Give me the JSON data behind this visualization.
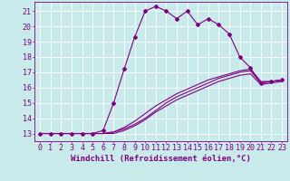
{
  "background_color": "#c8eaea",
  "grid_color": "#ffffff",
  "line_color": "#800080",
  "marker": "D",
  "markersize": 2.0,
  "linewidth": 0.8,
  "xlabel": "Windchill (Refroidissement éolien,°C)",
  "xlabel_fontsize": 6.5,
  "tick_fontsize": 6.0,
  "xlim": [
    -0.5,
    23.5
  ],
  "ylim": [
    12.5,
    21.6
  ],
  "yticks": [
    13,
    14,
    15,
    16,
    17,
    18,
    19,
    20,
    21
  ],
  "xticks": [
    0,
    1,
    2,
    3,
    4,
    5,
    6,
    7,
    8,
    9,
    10,
    11,
    12,
    13,
    14,
    15,
    16,
    17,
    18,
    19,
    20,
    21,
    22,
    23
  ],
  "series": [
    [
      13.0,
      13.0,
      13.0,
      13.0,
      13.0,
      13.0,
      13.2,
      15.0,
      17.2,
      19.3,
      21.0,
      21.3,
      21.0,
      20.5,
      21.0,
      20.1,
      20.5,
      20.1,
      19.5,
      18.0,
      17.3,
      16.3,
      16.4,
      16.5
    ],
    [
      13.0,
      13.0,
      13.0,
      13.0,
      13.0,
      13.0,
      13.0,
      13.1,
      13.3,
      13.6,
      14.0,
      14.5,
      15.0,
      15.4,
      15.7,
      16.0,
      16.3,
      16.6,
      16.8,
      17.0,
      17.1,
      16.3,
      16.4,
      16.5
    ],
    [
      13.0,
      13.0,
      13.0,
      13.0,
      13.0,
      13.0,
      13.0,
      13.1,
      13.4,
      13.8,
      14.3,
      14.8,
      15.2,
      15.6,
      15.9,
      16.2,
      16.5,
      16.7,
      16.9,
      17.1,
      17.2,
      16.4,
      16.4,
      16.5
    ],
    [
      13.0,
      13.0,
      13.0,
      13.0,
      13.0,
      13.0,
      13.0,
      13.0,
      13.2,
      13.5,
      13.9,
      14.4,
      14.8,
      15.2,
      15.5,
      15.8,
      16.1,
      16.4,
      16.6,
      16.8,
      16.9,
      16.2,
      16.3,
      16.4
    ]
  ],
  "series_has_markers": [
    true,
    false,
    false,
    false
  ]
}
